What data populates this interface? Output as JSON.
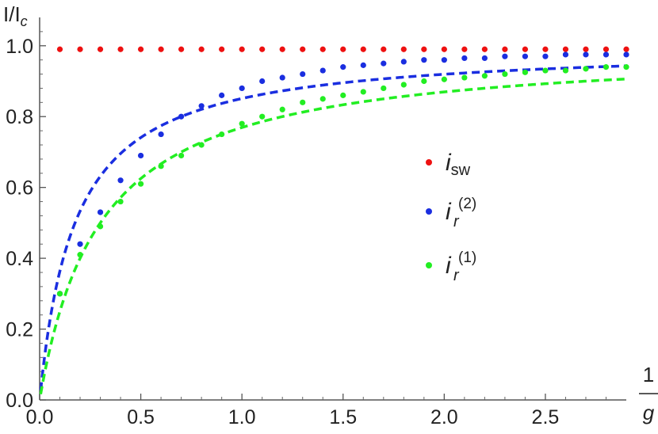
{
  "chart_data": {
    "type": "scatter",
    "ylabel": "I/I",
    "ylabel_sub": "c",
    "xlabel_num": "1",
    "xlabel_den": "g",
    "xlim": [
      0,
      2.9
    ],
    "ylim": [
      0,
      1.08
    ],
    "x_ticks": [
      0.0,
      0.5,
      1.0,
      1.5,
      2.0,
      2.5
    ],
    "x_tick_labels": [
      "0.0",
      "0.5",
      "1.0",
      "1.5",
      "2.0",
      "2.5"
    ],
    "y_ticks": [
      0.0,
      0.2,
      0.4,
      0.6,
      0.8,
      1.0
    ],
    "y_tick_labels": [
      "0.0",
      "0.2",
      "0.4",
      "0.6",
      "0.8",
      "1.0"
    ],
    "grid": false,
    "legend_position": "center-right",
    "x": [
      0.1,
      0.2,
      0.3,
      0.4,
      0.5,
      0.6,
      0.7,
      0.8,
      0.9,
      1.0,
      1.1,
      1.2,
      1.3,
      1.4,
      1.5,
      1.6,
      1.7,
      1.8,
      1.9,
      2.0,
      2.1,
      2.2,
      2.3,
      2.4,
      2.5,
      2.6,
      2.7,
      2.8,
      2.9
    ],
    "series": [
      {
        "name": "i",
        "name_sub": "sw",
        "name_sup": "",
        "color": "#ee1111",
        "fit": false,
        "values": [
          0.99,
          0.99,
          0.99,
          0.99,
          0.99,
          0.99,
          0.99,
          0.99,
          0.99,
          0.99,
          0.99,
          0.99,
          0.99,
          0.99,
          0.99,
          0.99,
          0.99,
          0.99,
          0.99,
          0.99,
          0.99,
          0.99,
          0.99,
          0.99,
          0.99,
          0.99,
          0.99,
          0.99,
          0.99
        ]
      },
      {
        "name": "i",
        "name_sub": "r",
        "name_sup": "(2)",
        "color": "#1a2ee0",
        "fit": true,
        "fit_k": 0.175,
        "values": [
          0.3,
          0.44,
          0.53,
          0.62,
          0.69,
          0.75,
          0.8,
          0.83,
          0.86,
          0.88,
          0.9,
          0.91,
          0.92,
          0.93,
          0.94,
          0.945,
          0.95,
          0.955,
          0.96,
          0.96,
          0.965,
          0.965,
          0.97,
          0.97,
          0.97,
          0.975,
          0.975,
          0.975,
          0.975
        ]
      },
      {
        "name": "i",
        "name_sub": "r",
        "name_sup": "(1)",
        "color": "#22ee22",
        "fit": true,
        "fit_k": 0.3,
        "values": [
          0.3,
          0.41,
          0.49,
          0.56,
          0.61,
          0.66,
          0.69,
          0.72,
          0.75,
          0.78,
          0.8,
          0.82,
          0.84,
          0.85,
          0.86,
          0.87,
          0.88,
          0.89,
          0.9,
          0.905,
          0.91,
          0.915,
          0.92,
          0.925,
          0.93,
          0.93,
          0.935,
          0.94,
          0.94
        ]
      }
    ]
  }
}
